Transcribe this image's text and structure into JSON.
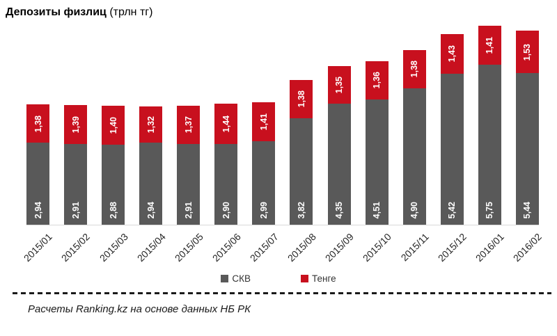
{
  "title": {
    "main": "Депозиты физлиц",
    "unit": " (трлн тг)"
  },
  "chart_data": {
    "type": "bar",
    "stacked": true,
    "title": "Депозиты физлиц (трлн тг)",
    "categories": [
      "2015/01",
      "2015/02",
      "2015/03",
      "2015/04",
      "2015/05",
      "2015/06",
      "2015/07",
      "2015/08",
      "2015/09",
      "2015/10",
      "2015/11",
      "2015/12",
      "2016/01",
      "2016/02"
    ],
    "series": [
      {
        "name": "СКВ",
        "color": "#595959",
        "values": [
          2.94,
          2.91,
          2.88,
          2.94,
          2.91,
          2.9,
          2.99,
          3.82,
          4.35,
          4.51,
          4.9,
          5.42,
          5.75,
          5.44
        ]
      },
      {
        "name": "Тенге",
        "color": "#C8101E",
        "values": [
          1.38,
          1.39,
          1.4,
          1.32,
          1.37,
          1.44,
          1.41,
          1.38,
          1.35,
          1.36,
          1.38,
          1.43,
          1.41,
          1.53
        ]
      }
    ],
    "value_label_style": "inside, rotated 90°, white bold, comma decimal",
    "xlabel": "",
    "ylabel": "",
    "ylim": [
      0,
      7.3
    ],
    "grid": false,
    "legend_position": "bottom",
    "axis_line_color": "#D9D9D9"
  },
  "footer": {
    "source_note": "Расчеты Ranking.kz на основе данных НБ РК"
  },
  "colors": {
    "skv_gray": "#595959",
    "tenge_red": "#C8101E",
    "baseline_gray": "#D9D9D9",
    "dashed_line": "#1A1A1A"
  }
}
